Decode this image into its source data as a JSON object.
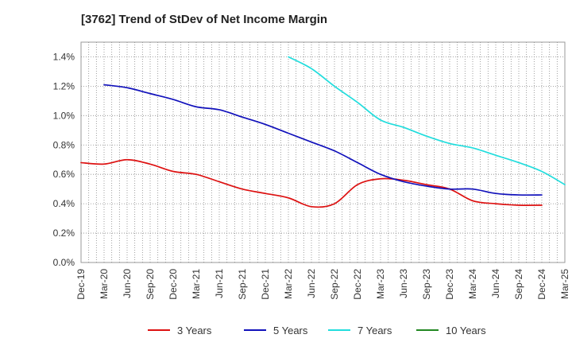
{
  "chart_data": {
    "type": "line",
    "title": "[3762]  Trend of StDev of Net Income Margin",
    "xlabel": "",
    "ylabel": "",
    "y_tick_labels": [
      "0.0%",
      "0.2%",
      "0.4%",
      "0.6%",
      "0.8%",
      "1.0%",
      "1.2%",
      "1.4%"
    ],
    "ylim": [
      0.0,
      1.5
    ],
    "x_tick_labels": [
      "Dec-19",
      "Mar-20",
      "Jun-20",
      "Sep-20",
      "Dec-20",
      "Mar-21",
      "Jun-21",
      "Sep-21",
      "Dec-21",
      "Mar-22",
      "Jun-22",
      "Sep-22",
      "Dec-22",
      "Mar-23",
      "Jun-23",
      "Sep-23",
      "Dec-23",
      "Mar-24",
      "Jun-24",
      "Sep-24",
      "Dec-24",
      "Mar-25"
    ],
    "grid": true,
    "legend_position": "bottom",
    "series": [
      {
        "name": "3 Years",
        "color": "#dd1111",
        "start_index": 0,
        "values": [
          0.68,
          0.67,
          0.7,
          0.67,
          0.62,
          0.6,
          0.55,
          0.5,
          0.47,
          0.44,
          0.38,
          0.4,
          0.53,
          0.57,
          0.56,
          0.53,
          0.5,
          0.42,
          0.4,
          0.39,
          0.39
        ]
      },
      {
        "name": "5 Years",
        "color": "#1111bb",
        "start_index": 1,
        "values": [
          1.21,
          1.19,
          1.15,
          1.11,
          1.06,
          1.04,
          0.99,
          0.94,
          0.88,
          0.82,
          0.76,
          0.68,
          0.6,
          0.55,
          0.52,
          0.5,
          0.5,
          0.47,
          0.46,
          0.46
        ]
      },
      {
        "name": "7 Years",
        "color": "#22dddd",
        "start_index": 9,
        "values": [
          1.4,
          1.32,
          1.2,
          1.09,
          0.97,
          0.92,
          0.86,
          0.81,
          0.78,
          0.73,
          0.68,
          0.62,
          0.53
        ]
      },
      {
        "name": "10 Years",
        "color": "#228822",
        "start_index": 0,
        "values": []
      }
    ]
  }
}
